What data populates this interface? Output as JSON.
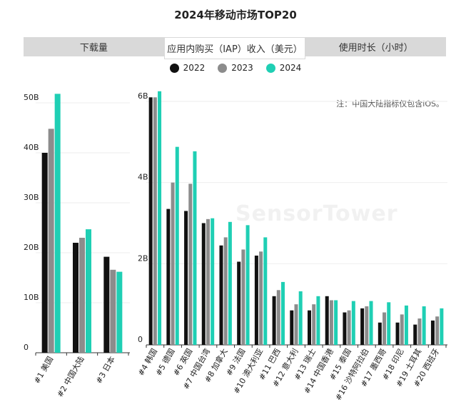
{
  "title": "2024年移动市场TOP20",
  "tabs": [
    {
      "label": "下载量",
      "active": false
    },
    {
      "label": "应用内购买（IAP）收入（美元）",
      "active": true
    },
    {
      "label": "使用时长（小时）",
      "active": false
    }
  ],
  "legend": [
    {
      "label": "2022",
      "color": "#111111"
    },
    {
      "label": "2023",
      "color": "#8c8c8c"
    },
    {
      "label": "2024",
      "color": "#1fcfb4"
    }
  ],
  "note": "注：中国大陆指标仅包含iOS。",
  "watermark": "SensorTower",
  "chart_data": [
    {
      "type": "bar",
      "categories": [
        "#1 美国",
        "#2 中国大陆",
        "#3 日本"
      ],
      "series": [
        {
          "name": "2022",
          "values": [
            40,
            22,
            19.2
          ]
        },
        {
          "name": "2023",
          "values": [
            44.8,
            23,
            16.6
          ]
        },
        {
          "name": "2024",
          "values": [
            51.8,
            24.7,
            16.2
          ]
        }
      ],
      "ylim": [
        0,
        50
      ],
      "yticks": [
        "0",
        "10B",
        "20B",
        "30B",
        "40B",
        "50B"
      ]
    },
    {
      "type": "bar",
      "categories": [
        "#4 韩国",
        "#5 德国",
        "#6 英国",
        "#7 中国台湾",
        "#8 加拿大",
        "#9 法国",
        "#10 澳大利亚",
        "#11 巴西",
        "#12 意大利",
        "#13 瑞士",
        "#14 中国香港",
        "#15 泰国",
        "#16 沙特阿拉伯",
        "#17 墨西哥",
        "#18 印尼",
        "#19 土耳其",
        "#20 西班牙"
      ],
      "series": [
        {
          "name": "2022",
          "values": [
            6.1,
            3.35,
            3.3,
            3.0,
            2.45,
            2.05,
            2.2,
            1.2,
            0.85,
            0.85,
            1.2,
            0.8,
            0.9,
            0.55,
            0.55,
            0.5,
            0.6
          ]
        },
        {
          "name": "2023",
          "values": [
            6.1,
            4.0,
            3.97,
            3.1,
            2.65,
            2.35,
            2.3,
            1.35,
            1.0,
            1.0,
            1.1,
            0.85,
            0.95,
            0.8,
            0.75,
            0.65,
            0.7
          ]
        },
        {
          "name": "2024",
          "values": [
            6.25,
            4.88,
            4.77,
            3.12,
            3.03,
            2.95,
            2.65,
            1.55,
            1.32,
            1.2,
            1.1,
            1.08,
            1.08,
            1.05,
            0.97,
            0.95,
            0.9
          ]
        }
      ],
      "ylim": [
        0,
        6
      ],
      "yticks": [
        "0",
        "2B",
        "4B",
        "6B"
      ]
    }
  ]
}
